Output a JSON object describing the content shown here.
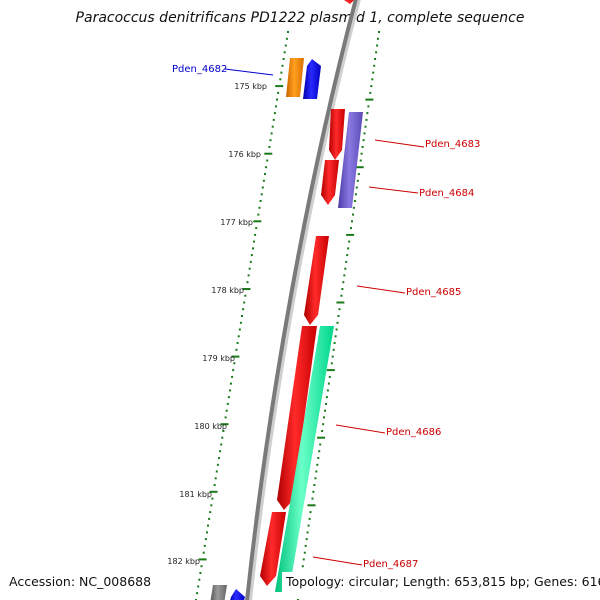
{
  "title": "Paracoccus denitrificans PD1222 plasmid 1, complete sequence",
  "accession_text": "Accession: NC_008688",
  "topology_text": "Topology: circular; Length: 653,815 bp; Genes: 616",
  "ticks": [
    "175 kbp",
    "176 kbp",
    "177 kbp",
    "178 kbp",
    "179 kbp",
    "180 kbp",
    "181 kbp",
    "182 kbp"
  ],
  "gene_labels": {
    "pden_4682": "Pden_4682",
    "pden_4683": "Pden_4683",
    "pden_4684": "Pden_4684",
    "pden_4685": "Pden_4685",
    "pden_4686": "Pden_4686",
    "pden_4687": "Pden_4687"
  },
  "colors": {
    "backbone": "#777777",
    "tick_dots": "#1a7a1a",
    "gene_red": "#ff0000",
    "gene_blue": "#0000ff",
    "gene_orange": "#ff8c00",
    "gene_purple": "#6a5acd",
    "gene_green": "#00fa9a",
    "gene_gray": "#808080",
    "label_red": "#cc0000",
    "label_blue": "#0000cc"
  }
}
